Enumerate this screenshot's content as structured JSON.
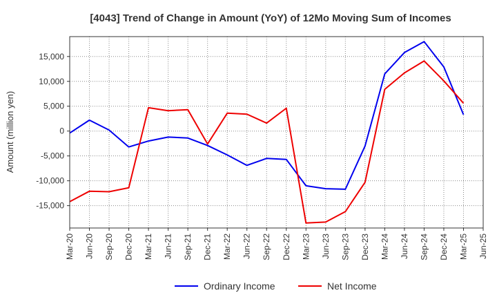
{
  "chart_data": {
    "type": "line",
    "title": "[4043]  Trend of Change in Amount (YoY) of 12Mo Moving Sum of Incomes",
    "xlabel": "",
    "ylabel": "Amount (million yen)",
    "categories": [
      "Mar-20",
      "Jun-20",
      "Sep-20",
      "Dec-20",
      "Mar-21",
      "Jun-21",
      "Sep-21",
      "Dec-21",
      "Mar-22",
      "Jun-22",
      "Sep-22",
      "Dec-22",
      "Mar-23",
      "Jun-23",
      "Sep-23",
      "Dec-23",
      "Mar-24",
      "Jun-24",
      "Sep-24",
      "Dec-24",
      "Mar-25",
      "Jun-25"
    ],
    "ylim": [
      -19500,
      19000
    ],
    "yticks": [
      -15000,
      -10000,
      -5000,
      0,
      5000,
      10000,
      15000
    ],
    "ytick_labels": [
      "-15,000",
      "-10,000",
      "-5,000",
      "0",
      "5,000",
      "10,000",
      "15,000"
    ],
    "grid": true,
    "legend_position": "bottom",
    "series": [
      {
        "name": "Ordinary Income",
        "color": "#0000ee",
        "values": [
          -400,
          2200,
          200,
          -3200,
          -2000,
          -1200,
          -1400,
          -2900,
          -4800,
          -6900,
          -5500,
          -5700,
          -11000,
          -11600,
          -11700,
          -3000,
          11500,
          15800,
          18000,
          12900,
          3300,
          null
        ]
      },
      {
        "name": "Net Income",
        "color": "#ee0000",
        "values": [
          -14200,
          -12100,
          -12200,
          -11400,
          4700,
          4100,
          4300,
          -2600,
          3600,
          3400,
          1600,
          4600,
          -18500,
          -18300,
          -16200,
          -10300,
          8400,
          11700,
          14100,
          10100,
          5600,
          null
        ]
      }
    ]
  }
}
